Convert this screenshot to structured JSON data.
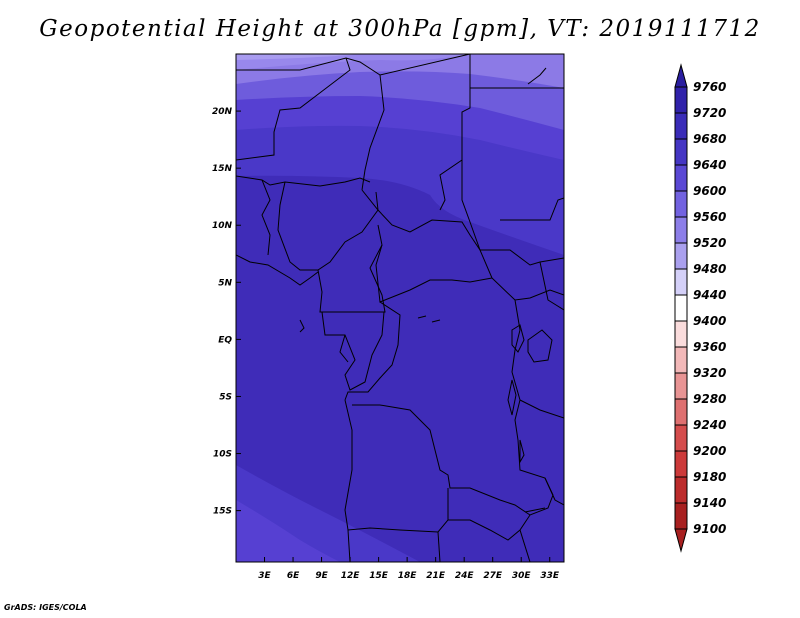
{
  "title": "Geopotential Height at 300hPa [gpm], VT: 2019111712",
  "credit": "GrADS: IGES/COLA",
  "map": {
    "x_ticks": [
      "3E",
      "6E",
      "9E",
      "12E",
      "15E",
      "18E",
      "21E",
      "24E",
      "27E",
      "30E",
      "33E"
    ],
    "y_ticks": [
      "20N",
      "15N",
      "10N",
      "5N",
      "EQ",
      "5S",
      "10S",
      "15S"
    ],
    "x_tick_values": [
      3,
      6,
      9,
      12,
      15,
      18,
      21,
      24,
      27,
      30,
      33
    ],
    "y_tick_values": [
      20,
      15,
      10,
      5,
      0,
      -5,
      -10,
      -15
    ],
    "lon_range": [
      0,
      34.5
    ],
    "lat_range": [
      -19.5,
      25
    ],
    "fill_colors": {
      "9560": "#8c7ae6",
      "9600": "#6e5cdc",
      "9640": "#5640d2",
      "9680": "#4a38c8",
      "9720": "#3f2cb8",
      "lightest": "#a99cf0",
      "light": "#9888ec"
    },
    "border_color": "#000000"
  },
  "colorbar": {
    "levels": [
      "9760",
      "9720",
      "9680",
      "9640",
      "9600",
      "9560",
      "9520",
      "9480",
      "9440",
      "9400",
      "9360",
      "9320",
      "9280",
      "9240",
      "9200",
      "9180",
      "9140",
      "9100"
    ],
    "colors": [
      "#2a1ea0",
      "#3022aa",
      "#3a2cb8",
      "#4536c4",
      "#5a48d4",
      "#7262e0",
      "#8c7ee8",
      "#aaa0ee",
      "#d4d0f8",
      "#ffffff",
      "#fadcdc",
      "#f2b8b8",
      "#e89494",
      "#de7070",
      "#d44c4c",
      "#cc3a3a",
      "#bc2c2c",
      "#a82020"
    ]
  }
}
